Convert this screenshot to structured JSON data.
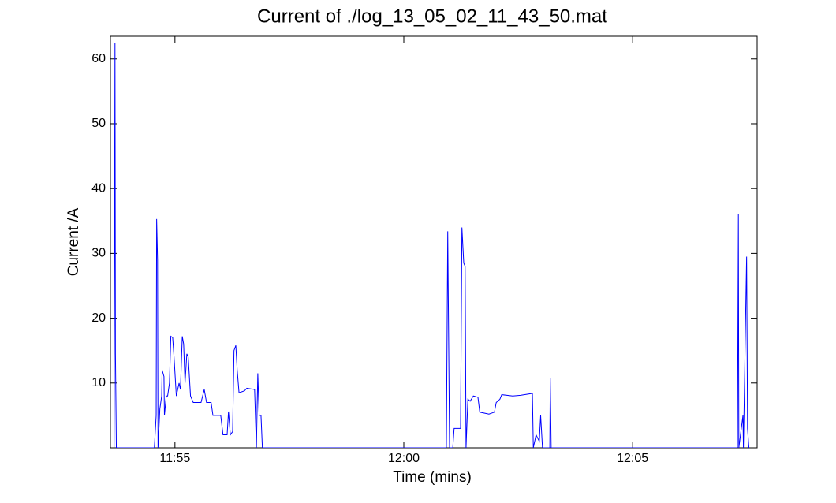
{
  "chart_data": {
    "type": "line",
    "title": "Current of ./log_13_05_02_11_43_50.mat",
    "xlabel": "Time (mins)",
    "ylabel": "Current /A",
    "x": [
      713.67,
      713.69,
      713.7,
      713.72,
      714.55,
      714.59,
      714.6,
      714.62,
      714.63,
      714.67,
      714.71,
      714.72,
      714.76,
      714.77,
      714.81,
      714.84,
      714.88,
      714.91,
      714.95,
      714.98,
      715.03,
      715.09,
      715.12,
      715.16,
      715.19,
      715.22,
      715.26,
      715.29,
      715.34,
      715.4,
      715.57,
      715.64,
      715.69,
      715.79,
      715.83,
      716.0,
      716.05,
      716.14,
      716.17,
      716.21,
      716.26,
      716.29,
      716.33,
      716.36,
      716.4,
      716.52,
      716.57,
      716.74,
      716.78,
      716.81,
      716.84,
      716.88,
      716.91,
      720.93,
      720.96,
      721.0,
      721.07,
      721.1,
      721.24,
      721.27,
      721.31,
      721.34,
      721.36,
      721.4,
      721.45,
      721.52,
      721.62,
      721.66,
      721.86,
      721.98,
      722.02,
      722.1,
      722.14,
      722.38,
      722.55,
      722.81,
      722.83,
      722.89,
      722.96,
      722.99,
      723.03,
      723.19,
      723.2,
      723.22,
      727.29,
      727.31,
      727.32,
      727.41,
      727.42,
      727.49,
      727.51,
      727.54
    ],
    "series": [
      {
        "color": "#0000ff",
        "values": [
          0,
          62.5,
          14.5,
          0,
          0,
          5,
          35.3,
          29,
          0,
          6,
          8,
          12,
          11,
          5,
          8,
          8,
          10,
          17.2,
          17,
          14,
          8,
          10,
          9,
          17.2,
          16,
          10,
          14.5,
          14,
          8,
          7,
          7,
          9,
          7,
          7,
          5,
          5,
          2,
          2,
          5.6,
          2,
          2.5,
          15,
          15.8,
          12,
          8.5,
          8.8,
          9.2,
          9,
          0,
          11.5,
          5,
          5,
          0,
          0,
          33.4,
          0,
          0,
          3,
          3,
          34,
          28.5,
          28,
          0,
          7.5,
          7.2,
          8,
          7.8,
          5.5,
          5.2,
          5.5,
          7,
          7.5,
          8.2,
          8,
          8.1,
          8.4,
          0,
          2,
          1,
          5,
          0,
          0,
          10.7,
          0,
          0,
          36,
          0,
          5,
          0,
          29.5,
          3,
          0
        ]
      }
    ],
    "xlim": [
      713.59,
      727.72
    ],
    "xticks": [
      {
        "value": 715,
        "label": "11:55"
      },
      {
        "value": 720,
        "label": "12:00"
      },
      {
        "value": 725,
        "label": "12:05"
      }
    ],
    "ylim": [
      0,
      63.5
    ],
    "yticks": [
      10,
      20,
      30,
      40,
      50,
      60
    ],
    "grid": false
  }
}
